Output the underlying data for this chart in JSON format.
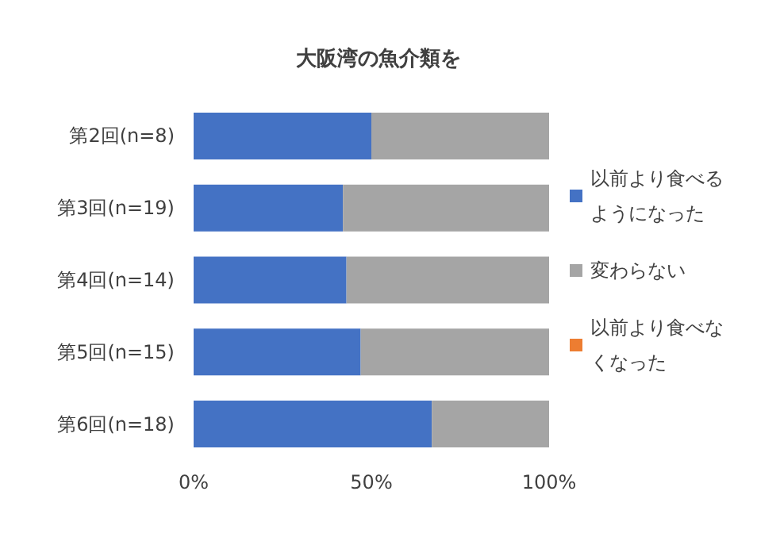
{
  "chart_data": {
    "type": "bar",
    "orientation": "horizontal",
    "stacked": true,
    "title": "大阪湾の魚介類を",
    "categories": [
      "第2回(n=8)",
      "第3回(n=19)",
      "第4回(n=14)",
      "第5回(n=15)",
      "第6回(n=18)"
    ],
    "series": [
      {
        "name": "以前より食べるようになった",
        "color": "#4472c4",
        "values": [
          50,
          42,
          43,
          47,
          67
        ]
      },
      {
        "name": "変わらない",
        "color": "#a5a5a5",
        "values": [
          50,
          58,
          57,
          53,
          33
        ]
      },
      {
        "name": "以前より食べなくなった",
        "color": "#ed7d31",
        "values": [
          0,
          0,
          0,
          0,
          0
        ]
      }
    ],
    "xlim": [
      0,
      100
    ],
    "xticks": [
      {
        "value": 0,
        "label": "0%"
      },
      {
        "value": 50,
        "label": "50%"
      },
      {
        "value": 100,
        "label": "100%"
      }
    ],
    "grid": false,
    "legend": "right"
  }
}
